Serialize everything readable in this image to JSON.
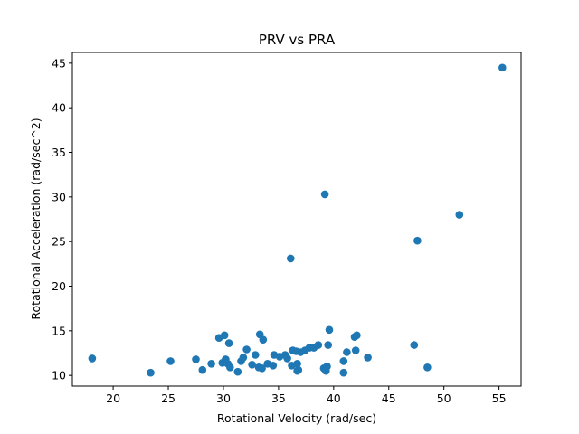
{
  "chart_data": {
    "type": "scatter",
    "title": "PRV vs PRA",
    "xlabel": "Rotational Velocity (rad/sec)",
    "ylabel": "Rotational Acceleration (rad/sec^2)",
    "xlim": [
      16.3,
      57.0
    ],
    "ylim": [
      8.8,
      46.2
    ],
    "xticks": [
      20,
      25,
      30,
      35,
      40,
      45,
      50,
      55
    ],
    "yticks": [
      10,
      15,
      20,
      25,
      30,
      35,
      40,
      45
    ],
    "grid": false,
    "marker_color": "#1f77b4",
    "points": [
      {
        "x": 18.1,
        "y": 11.9
      },
      {
        "x": 23.4,
        "y": 10.3
      },
      {
        "x": 25.2,
        "y": 11.6
      },
      {
        "x": 27.5,
        "y": 11.8
      },
      {
        "x": 28.1,
        "y": 10.6
      },
      {
        "x": 28.9,
        "y": 11.3
      },
      {
        "x": 29.6,
        "y": 14.2
      },
      {
        "x": 29.9,
        "y": 11.4
      },
      {
        "x": 30.1,
        "y": 14.5
      },
      {
        "x": 30.2,
        "y": 11.8
      },
      {
        "x": 30.4,
        "y": 11.3
      },
      {
        "x": 30.5,
        "y": 13.6
      },
      {
        "x": 30.6,
        "y": 10.9
      },
      {
        "x": 31.3,
        "y": 10.4
      },
      {
        "x": 31.6,
        "y": 11.6
      },
      {
        "x": 31.8,
        "y": 12.0
      },
      {
        "x": 32.1,
        "y": 12.9
      },
      {
        "x": 32.6,
        "y": 11.2
      },
      {
        "x": 32.9,
        "y": 12.3
      },
      {
        "x": 33.2,
        "y": 10.9
      },
      {
        "x": 33.3,
        "y": 14.6
      },
      {
        "x": 33.6,
        "y": 14.0
      },
      {
        "x": 33.5,
        "y": 10.8
      },
      {
        "x": 34.0,
        "y": 11.3
      },
      {
        "x": 34.5,
        "y": 11.1
      },
      {
        "x": 34.6,
        "y": 12.3
      },
      {
        "x": 35.1,
        "y": 12.1
      },
      {
        "x": 35.6,
        "y": 12.3
      },
      {
        "x": 35.8,
        "y": 11.9
      },
      {
        "x": 36.1,
        "y": 23.1
      },
      {
        "x": 36.2,
        "y": 11.1
      },
      {
        "x": 36.3,
        "y": 12.8
      },
      {
        "x": 36.6,
        "y": 12.7
      },
      {
        "x": 36.7,
        "y": 10.5
      },
      {
        "x": 36.7,
        "y": 11.3
      },
      {
        "x": 36.8,
        "y": 10.6
      },
      {
        "x": 37.0,
        "y": 12.6
      },
      {
        "x": 37.4,
        "y": 12.8
      },
      {
        "x": 37.8,
        "y": 13.1
      },
      {
        "x": 38.2,
        "y": 13.1
      },
      {
        "x": 38.6,
        "y": 13.4
      },
      {
        "x": 39.1,
        "y": 10.8
      },
      {
        "x": 39.2,
        "y": 30.3
      },
      {
        "x": 39.3,
        "y": 10.5
      },
      {
        "x": 39.4,
        "y": 11.0
      },
      {
        "x": 39.5,
        "y": 13.4
      },
      {
        "x": 39.6,
        "y": 15.1
      },
      {
        "x": 40.9,
        "y": 10.3
      },
      {
        "x": 40.9,
        "y": 11.6
      },
      {
        "x": 41.2,
        "y": 12.6
      },
      {
        "x": 41.9,
        "y": 14.3
      },
      {
        "x": 42.0,
        "y": 12.8
      },
      {
        "x": 42.1,
        "y": 14.5
      },
      {
        "x": 43.1,
        "y": 12.0
      },
      {
        "x": 47.3,
        "y": 13.4
      },
      {
        "x": 47.6,
        "y": 25.1
      },
      {
        "x": 48.5,
        "y": 10.9
      },
      {
        "x": 51.4,
        "y": 28.0
      },
      {
        "x": 55.3,
        "y": 44.5
      }
    ]
  }
}
